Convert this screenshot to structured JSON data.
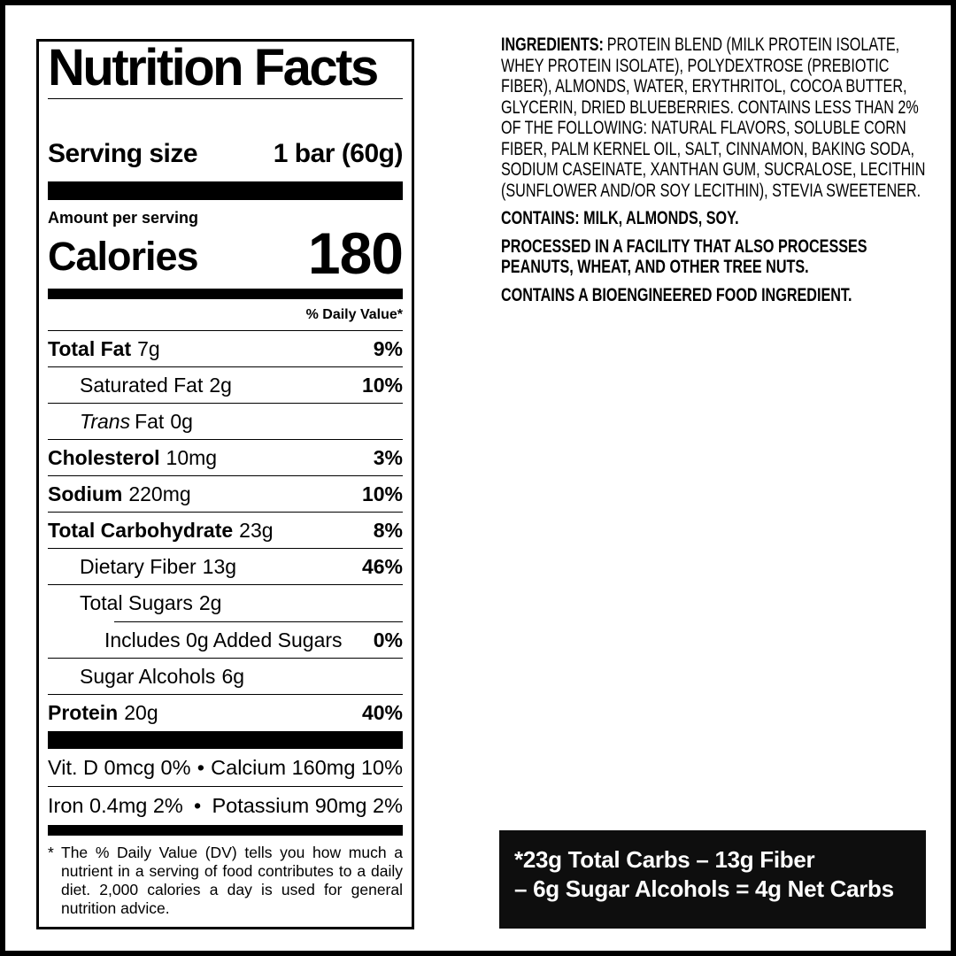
{
  "colors": {
    "ink": "#000000",
    "paper": "#ffffff",
    "box_bg": "#0e0e0e",
    "box_text": "#ffffff"
  },
  "label": {
    "title": "Nutrition Facts",
    "serving": {
      "label": "Serving size",
      "value": "1 bar (60g)"
    },
    "amount_per_serving": "Amount per serving",
    "calories": {
      "label": "Calories",
      "value": "180"
    },
    "daily_value_header": "% Daily Value*",
    "nutrients": [
      {
        "name": "Total Fat",
        "amount": "7g",
        "dv": "9%"
      },
      {
        "name": "Saturated Fat",
        "amount": "2g",
        "dv": "10%"
      },
      {
        "name_italic": "Trans",
        "name": "Fat",
        "amount": "0g",
        "dv": ""
      },
      {
        "name": "Cholesterol",
        "amount": "10mg",
        "dv": "3%"
      },
      {
        "name": "Sodium",
        "amount": "220mg",
        "dv": "10%"
      },
      {
        "name": "Total Carbohydrate",
        "amount": "23g",
        "dv": "8%"
      },
      {
        "name": "Dietary Fiber",
        "amount": "13g",
        "dv": "46%"
      },
      {
        "name": "Total Sugars",
        "amount": "2g",
        "dv": ""
      },
      {
        "name": "Includes 0g Added Sugars",
        "amount": "",
        "dv": "0%"
      },
      {
        "name": "Sugar Alcohols",
        "amount": "6g",
        "dv": ""
      },
      {
        "name": "Protein",
        "amount": "20g",
        "dv": "40%"
      }
    ],
    "micronutrients": [
      {
        "left": "Vit. D 0mcg 0%",
        "bullet": "•",
        "right": "Calcium 160mg 10%"
      },
      {
        "left": "Iron 0.4mg 2%",
        "bullet": "•",
        "right": "Potassium 90mg 2%"
      }
    ],
    "footnote": {
      "star": "*",
      "text": "The % Daily Value (DV) tells you how much a nutrient in a serving of food contributes to a daily diet. 2,000 calories a day is used for general nutrition advice."
    }
  },
  "ingredients_panel": {
    "ingredients_label": "INGREDIENTS:",
    "ingredients_text": "PROTEIN BLEND (MILK PROTEIN ISOLATE, WHEY PROTEIN ISOLATE), POLYDEXTROSE (PREBIOTIC FIBER), ALMONDS, WATER, ERYTHRITOL, COCOA BUTTER, GLYCERIN, DRIED BLUEBERRIES. CONTAINS LESS THAN 2% OF THE FOLLOWING: NATURAL FLAVORS, SOLUBLE CORN FIBER, PALM KERNEL OIL, SALT, CINNAMON, BAKING SODA, SODIUM CASEINATE, XANTHAN GUM, SUCRALOSE, LECITHIN (SUNFLOWER AND/OR SOY LECITHIN), STEVIA SWEETENER.",
    "contains": "CONTAINS: MILK, ALMONDS, SOY.",
    "facility": "PROCESSED IN A FACILITY THAT ALSO PROCESSES PEANUTS, WHEAT, AND OTHER TREE NUTS.",
    "bioengineered": "CONTAINS A BIOENGINEERED FOOD INGREDIENT."
  },
  "net_carbs_box": {
    "line1": "*23g Total Carbs – 13g Fiber",
    "line2": "– 6g Sugar Alcohols = 4g Net Carbs"
  }
}
